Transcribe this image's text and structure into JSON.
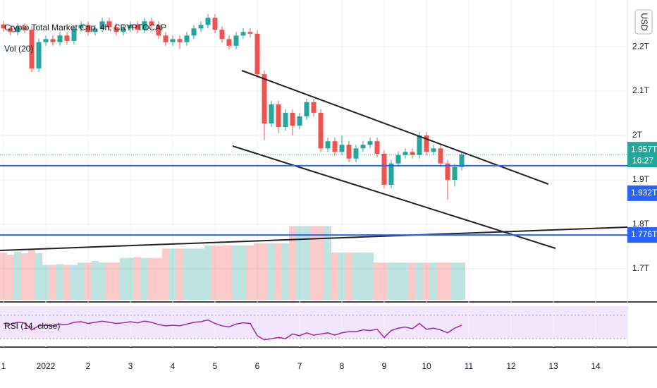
{
  "chart_data": {
    "type": "candlestick",
    "title": "Crypto Total Market Cap, 4h, CRYPTOCAP",
    "volume_label": "Vol (20)",
    "rsi_label": "RSI (14, close)",
    "currency": "USD",
    "countdown": "16:27",
    "up_color": "#26a69a",
    "down_color": "#ef5350",
    "rsi_color": "#9c27b0",
    "x": [
      0,
      4,
      8,
      12,
      16,
      20,
      24,
      28,
      32,
      36,
      40,
      44,
      48,
      52,
      56,
      60,
      64,
      68,
      72,
      76,
      80,
      84,
      88,
      92,
      96,
      100,
      104,
      108,
      112,
      116,
      120,
      124,
      128,
      132,
      136,
      140,
      144,
      148,
      152,
      156,
      160,
      164,
      168,
      172,
      176,
      180,
      184,
      188,
      192,
      196,
      200,
      204,
      208,
      212,
      216,
      220,
      224,
      228,
      232,
      236,
      240,
      244,
      248,
      252,
      256,
      260
    ],
    "open": [
      2.25,
      2.241,
      2.233,
      2.244,
      2.238,
      2.151,
      2.21,
      2.217,
      2.21,
      2.225,
      2.213,
      2.241,
      2.249,
      2.233,
      2.241,
      2.257,
      2.244,
      2.233,
      2.241,
      2.249,
      2.238,
      2.257,
      2.249,
      2.225,
      2.21,
      2.217,
      2.21,
      2.225,
      2.241,
      2.249,
      2.265,
      2.238,
      2.217,
      2.202,
      2.225,
      2.233,
      2.229,
      2.138,
      2.027,
      2.07,
      2.019,
      2.051,
      2.022,
      2.043,
      2.075,
      2.051,
      1.971,
      1.987,
      1.963,
      1.979,
      1.948,
      1.971,
      1.979,
      1.987,
      1.959,
      1.889,
      1.937,
      1.956,
      1.963,
      1.956,
      2.0,
      1.963,
      1.971,
      1.937,
      1.9,
      1.929
    ],
    "high": [
      2.258,
      2.249,
      2.252,
      2.252,
      2.246,
      2.218,
      2.225,
      2.225,
      2.233,
      2.233,
      2.249,
      2.257,
      2.257,
      2.249,
      2.265,
      2.265,
      2.252,
      2.249,
      2.257,
      2.257,
      2.265,
      2.265,
      2.257,
      2.233,
      2.225,
      2.225,
      2.233,
      2.249,
      2.257,
      2.273,
      2.273,
      2.246,
      2.225,
      2.233,
      2.241,
      2.241,
      2.237,
      2.146,
      2.078,
      2.078,
      2.059,
      2.059,
      2.051,
      2.083,
      2.083,
      2.059,
      1.995,
      1.995,
      2.0,
      1.987,
      1.979,
      1.987,
      1.995,
      1.995,
      1.967,
      1.945,
      1.964,
      1.971,
      1.971,
      2.008,
      2.008,
      1.979,
      1.979,
      1.945,
      1.937,
      1.965
    ],
    "low": [
      2.233,
      2.225,
      2.225,
      2.23,
      2.143,
      2.143,
      2.202,
      2.202,
      2.202,
      2.205,
      2.205,
      2.233,
      2.225,
      2.225,
      2.233,
      2.236,
      2.225,
      2.225,
      2.233,
      2.23,
      2.23,
      2.241,
      2.217,
      2.202,
      2.202,
      2.195,
      2.202,
      2.217,
      2.233,
      2.241,
      2.23,
      2.209,
      2.194,
      2.194,
      2.217,
      2.221,
      2.13,
      1.99,
      2.019,
      2.005,
      2.011,
      2.0,
      2.014,
      2.035,
      2.043,
      1.963,
      1.963,
      1.955,
      1.955,
      1.94,
      1.94,
      1.963,
      1.971,
      1.951,
      1.881,
      1.881,
      1.929,
      1.948,
      1.948,
      1.948,
      1.955,
      1.955,
      1.929,
      1.855,
      1.885,
      1.921
    ],
    "close": [
      2.241,
      2.233,
      2.244,
      2.238,
      2.151,
      2.21,
      2.217,
      2.21,
      2.225,
      2.213,
      2.241,
      2.249,
      2.233,
      2.241,
      2.257,
      2.244,
      2.233,
      2.241,
      2.249,
      2.238,
      2.257,
      2.249,
      2.225,
      2.21,
      2.217,
      2.21,
      2.225,
      2.241,
      2.249,
      2.265,
      2.238,
      2.217,
      2.202,
      2.225,
      2.233,
      2.229,
      2.138,
      2.027,
      2.07,
      2.019,
      2.051,
      2.022,
      2.043,
      2.075,
      2.051,
      1.971,
      1.987,
      1.963,
      1.979,
      1.948,
      1.971,
      1.979,
      1.987,
      1.959,
      1.889,
      1.937,
      1.956,
      1.963,
      1.956,
      2.0,
      1.963,
      1.971,
      1.937,
      1.9,
      1.929,
      1.957
    ],
    "volume": [
      61,
      58,
      62,
      60,
      64,
      60,
      45,
      45,
      46,
      45,
      45,
      48,
      48,
      50,
      48,
      48,
      48,
      54,
      54,
      55,
      54,
      54,
      54,
      66,
      66,
      66,
      66,
      66,
      66,
      70,
      70,
      70,
      70,
      70,
      70,
      70,
      73,
      73,
      73,
      73,
      73,
      95,
      95,
      95,
      95,
      95,
      95,
      61,
      61,
      61,
      61,
      61,
      61,
      48,
      48,
      48,
      48,
      48,
      48,
      48,
      48,
      48,
      48,
      48,
      48,
      48
    ],
    "rsi": [
      56,
      55,
      58,
      57,
      45,
      52,
      53,
      52,
      55,
      54,
      58,
      59,
      56,
      58,
      60,
      58,
      56,
      57,
      59,
      57,
      60,
      58,
      54,
      52,
      53,
      52,
      55,
      58,
      59,
      62,
      56,
      52,
      50,
      55,
      57,
      56,
      35,
      28,
      30,
      32,
      30,
      38,
      35,
      40,
      36,
      38,
      40,
      36,
      40,
      42,
      42,
      45,
      44,
      46,
      32,
      44,
      48,
      50,
      47,
      56,
      46,
      48,
      45,
      40,
      48,
      53
    ],
    "xlim": [
      -2,
      354
    ],
    "ylim": [
      1.63,
      2.305
    ],
    "volume_ylim": [
      0,
      100
    ],
    "rsi_ylim": [
      18,
      88
    ],
    "rsi_band": [
      30,
      70
    ],
    "yticks": [
      {
        "value": 2.2,
        "label": "2.2T"
      },
      {
        "value": 2.1,
        "label": "2.1T"
      },
      {
        "value": 2.0,
        "label": "2T"
      },
      {
        "value": 1.9,
        "label": "1.9T"
      },
      {
        "value": 1.8,
        "label": "1.8T"
      },
      {
        "value": 1.7,
        "label": "1.7T"
      }
    ],
    "xticks": [
      {
        "value": 0,
        "label": "1"
      },
      {
        "value": 24,
        "label": "2022"
      },
      {
        "value": 48,
        "label": "2"
      },
      {
        "value": 72,
        "label": "3"
      },
      {
        "value": 96,
        "label": "4"
      },
      {
        "value": 120,
        "label": "5"
      },
      {
        "value": 144,
        "label": "6"
      },
      {
        "value": 168,
        "label": "7"
      },
      {
        "value": 192,
        "label": "8"
      },
      {
        "value": 216,
        "label": "9"
      },
      {
        "value": 240,
        "label": "10"
      },
      {
        "value": 264,
        "label": "11"
      },
      {
        "value": 288,
        "label": "12"
      },
      {
        "value": 312,
        "label": "13"
      },
      {
        "value": 336,
        "label": "14"
      }
    ],
    "price_lines": [
      {
        "value": 1.957,
        "label": "1.957T",
        "color": "#26a69a"
      },
      {
        "value": 1.932,
        "label": "1.932T",
        "color": "#2962ff"
      },
      {
        "value": 1.776,
        "label": "1.776T",
        "color": "#2962ff"
      }
    ]
  }
}
